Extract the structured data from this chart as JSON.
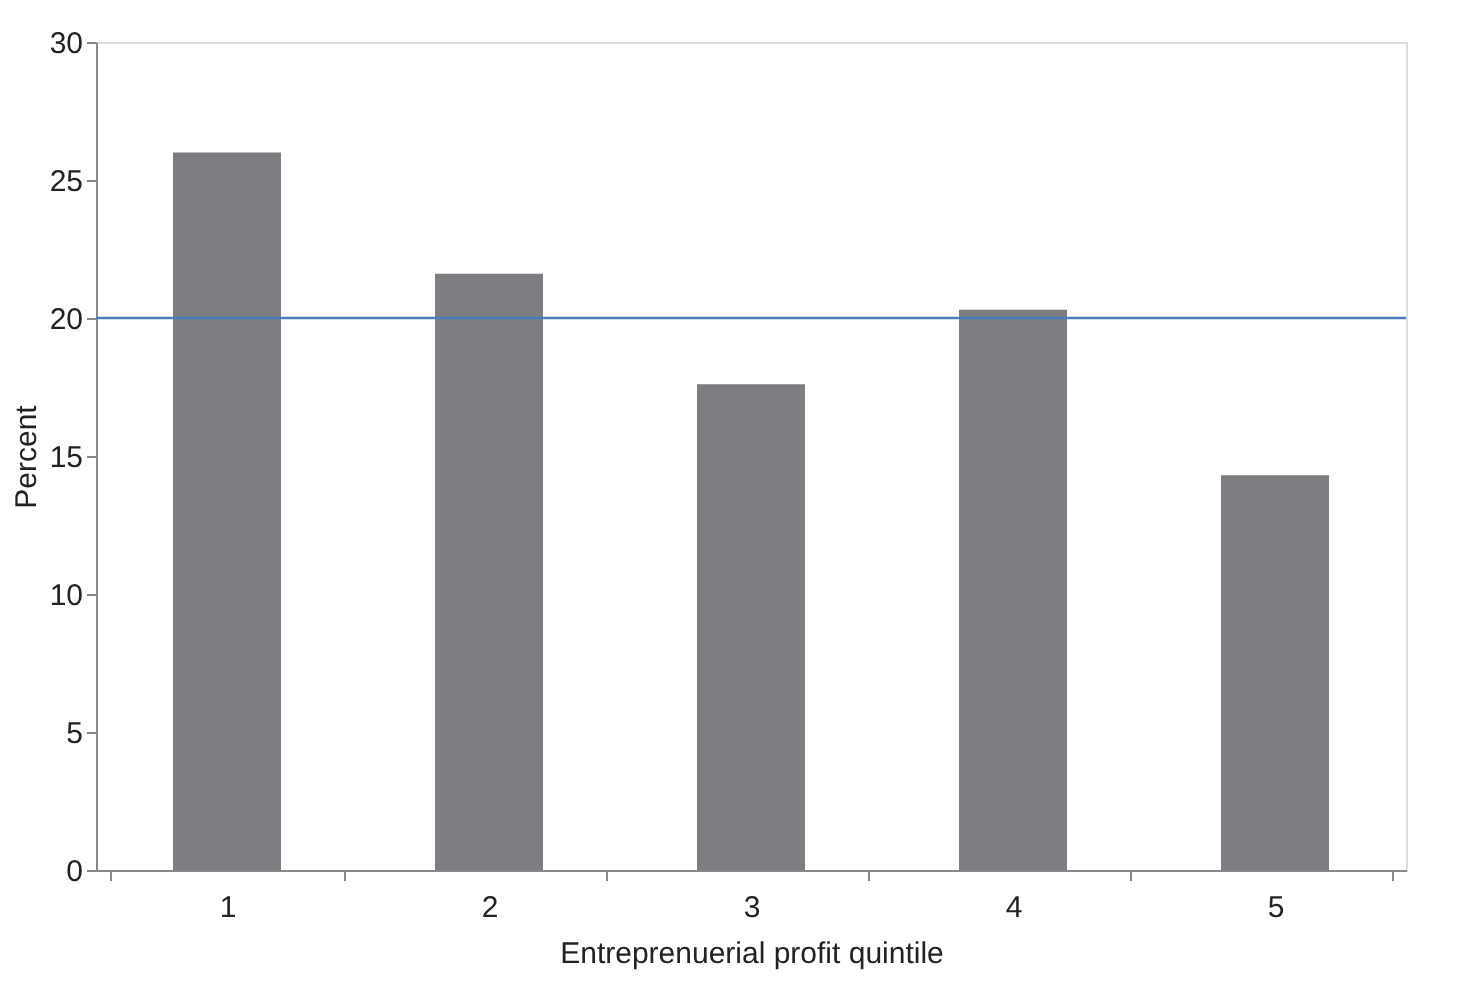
{
  "chart_data": {
    "type": "bar",
    "xlabel": "Entreprenuerial profit quintile",
    "ylabel": "Percent",
    "categories": [
      "1",
      "2",
      "3",
      "4",
      "5"
    ],
    "values": [
      26.0,
      21.6,
      17.6,
      20.3,
      14.3
    ],
    "color": "#7c7d80",
    "ylim": [
      0,
      30
    ],
    "yticks": [
      0,
      5,
      10,
      15,
      20,
      25,
      30
    ],
    "grid": false,
    "ref_lines": [
      {
        "axis": "y",
        "value": 20,
        "color": "#4a7ebb"
      }
    ]
  }
}
